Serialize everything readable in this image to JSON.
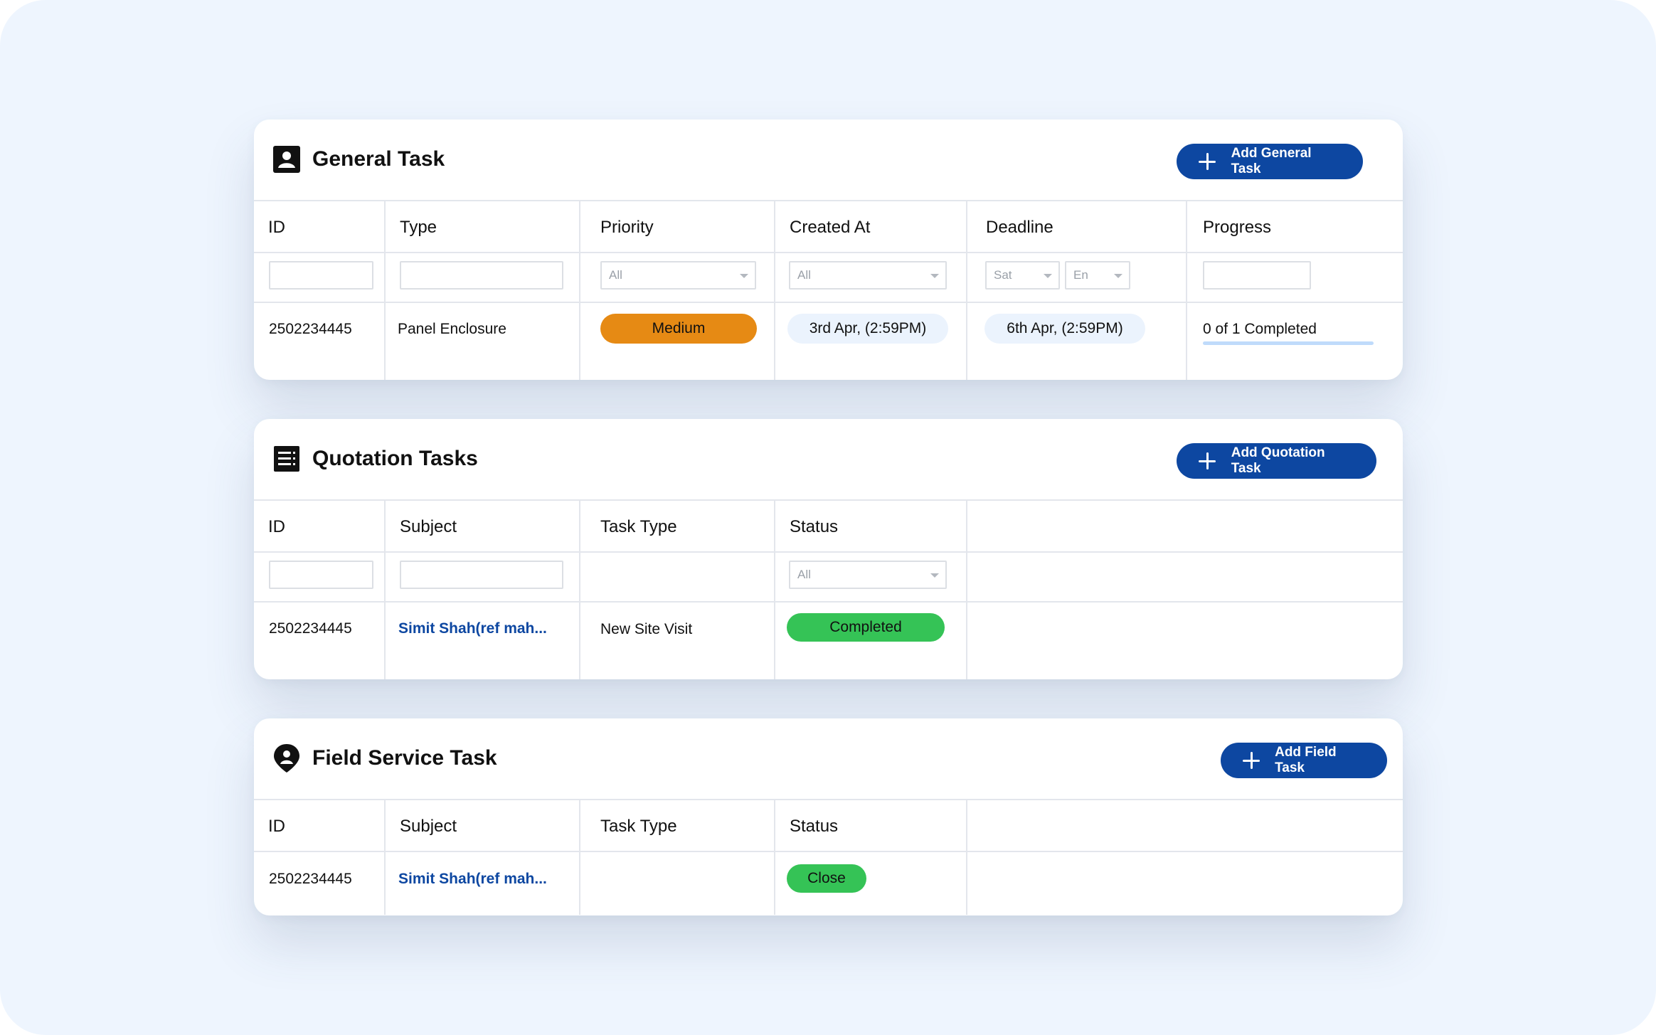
{
  "general_task": {
    "title": "General Task",
    "add_button": "Add General Task",
    "columns": [
      "ID",
      "Type",
      "Priority",
      "Created At",
      "Deadline",
      "Progress"
    ],
    "filters": {
      "priority": "All",
      "created_at": "All",
      "deadline_from": "Sat",
      "deadline_to": "En"
    },
    "row": {
      "id": "2502234445",
      "type": "Panel Enclosure",
      "priority": "Medium",
      "created_at": "3rd Apr, (2:59PM)",
      "deadline": "6th Apr, (2:59PM)",
      "progress_text": "0 of 1 Completed",
      "progress_fraction": 0
    }
  },
  "quotation_tasks": {
    "title": "Quotation Tasks",
    "add_button": "Add Quotation Task",
    "columns": [
      "ID",
      "Subject",
      "Task Type",
      "Status"
    ],
    "filters": {
      "status": "All"
    },
    "row": {
      "id": "2502234445",
      "subject": "Simit Shah(ref mah...",
      "task_type": "New Site Visit",
      "status": "Completed"
    }
  },
  "field_service_task": {
    "title": "Field Service Task",
    "add_button": "Add Field Task",
    "columns": [
      "ID",
      "Subject",
      "Task Type",
      "Status"
    ],
    "row": {
      "id": "2502234445",
      "subject": "Simit Shah(ref mah...",
      "task_type": "",
      "status": "Close"
    }
  },
  "icons": {
    "general": "contact-card-icon",
    "quotation": "list-document-icon",
    "field": "location-person-pin-icon"
  },
  "colors": {
    "primary": "#0d47a1",
    "priority_medium": "#e68a14",
    "status_green": "#35c356",
    "date_pill": "#ebf3fd",
    "background": "#eef5fe"
  }
}
